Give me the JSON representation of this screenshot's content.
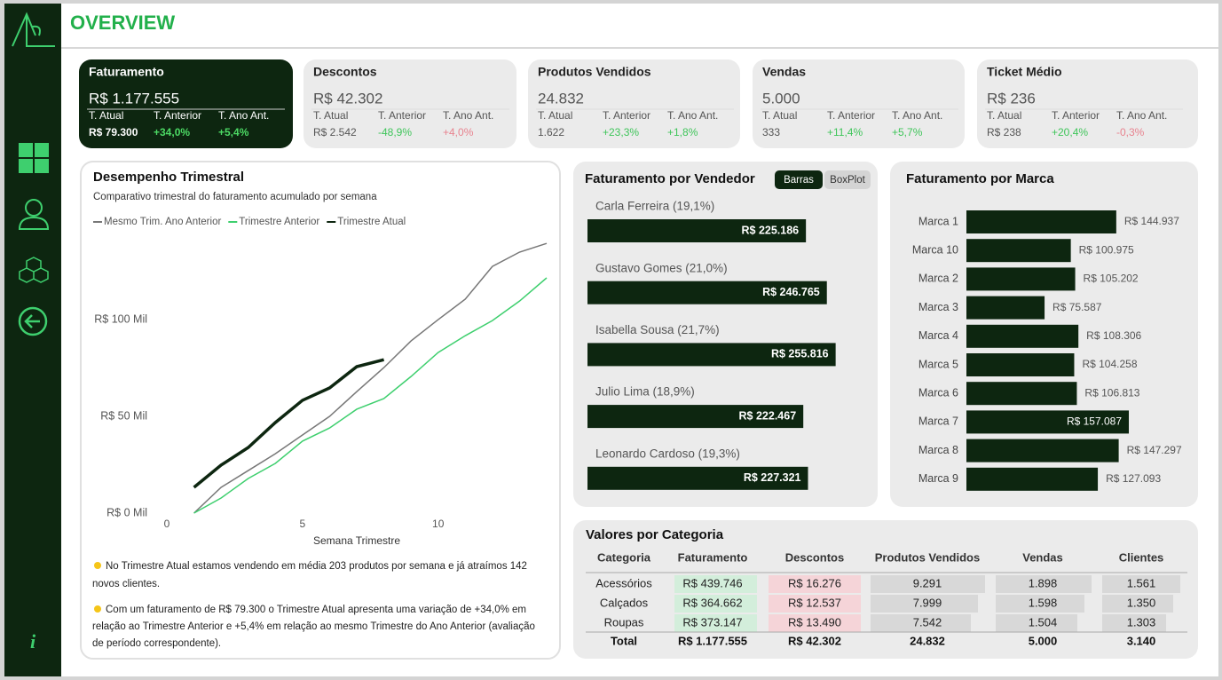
{
  "header": {
    "title": "OVERVIEW"
  },
  "kpi_labels": [
    "T. Atual",
    "T. Anterior",
    "T. Ano Ant."
  ],
  "kpis": [
    {
      "title": "Faturamento",
      "value": "R$ 1.177.555",
      "values": [
        "R$ 79.300",
        "+34,0%",
        "+5,4%"
      ],
      "colors": [
        "#ffffff",
        "#4cd964",
        "#4cd964"
      ]
    },
    {
      "title": "Descontos",
      "value": "R$ 42.302",
      "values": [
        "R$ 2.542",
        "-48,9%",
        "+4,0%"
      ],
      "colors": [
        "#555555",
        "#3fc55a",
        "#e8838f"
      ]
    },
    {
      "title": "Produtos Vendidos",
      "value": "24.832",
      "values": [
        "1.622",
        "+23,3%",
        "+1,8%"
      ],
      "colors": [
        "#555555",
        "#3fc55a",
        "#3fc55a"
      ]
    },
    {
      "title": "Vendas",
      "value": "5.000",
      "values": [
        "333",
        "+11,4%",
        "+5,7%"
      ],
      "colors": [
        "#555555",
        "#3fc55a",
        "#3fc55a"
      ]
    },
    {
      "title": "Ticket Médio",
      "value": "R$ 236",
      "values": [
        "R$ 238",
        "+20,4%",
        "-0,3%"
      ],
      "colors": [
        "#555555",
        "#3fc55a",
        "#e8838f"
      ]
    }
  ],
  "line_chart": {
    "type": "line",
    "title": "Desempenho Trimestral",
    "subtitle": "Comparativo trimestral do faturamento acumulado por semana",
    "x": [
      1,
      2,
      3,
      4,
      5,
      6,
      7,
      8,
      9,
      10,
      11,
      12,
      13,
      14
    ],
    "series": [
      {
        "name": "Mesmo Trim. Ano Anterior",
        "color": "#777777",
        "values": [
          0,
          13300,
          22000,
          30700,
          40400,
          50000,
          62800,
          75200,
          89000,
          100000,
          110600,
          127500,
          134900,
          139400
        ]
      },
      {
        "name": "Trimestre Anterior",
        "color": "#3ecf6e",
        "values": [
          0,
          7800,
          17900,
          25700,
          37200,
          44000,
          53700,
          59200,
          70600,
          83000,
          91700,
          99500,
          109600,
          121600
        ]
      },
      {
        "name": "Trimestre Atual",
        "color": "#0d2610",
        "values": [
          13300,
          24800,
          33900,
          46800,
          58300,
          64700,
          75700,
          79300,
          null,
          null,
          null,
          null,
          null,
          null
        ]
      }
    ],
    "xlim": [
      0,
      14
    ],
    "xticks": [
      0,
      5,
      10
    ],
    "xlabel": "Semana Trimestre",
    "ylim": [
      0,
      145000
    ],
    "yticks": [
      {
        "value": 0,
        "label": "R$ 0 Mil"
      },
      {
        "value": 50000,
        "label": "R$ 50 Mil"
      },
      {
        "value": 100000,
        "label": "R$ 100 Mil"
      }
    ]
  },
  "notes": [
    "No Trimestre Atual estamos vendendo em média 203 produtos por semana e já atraímos 142",
    "novos clientes.",
    "Com um faturamento de R$ 79.300 o Trimestre Atual apresenta uma variação de +34,0% em",
    "relação ao Trimestre Anterior e +5,4%  em relação ao mesmo Trimestre do Ano Anterior (avaliação",
    "de período correspondente)."
  ],
  "vendor_chart": {
    "type": "bar",
    "title": "Faturamento por Vendedor",
    "buttons": [
      "Barras",
      "BoxPlot"
    ],
    "categories": [
      "Carla Ferreira (19,1%)",
      "Gustavo Gomes (21,0%)",
      "Isabella Sousa (21,7%)",
      "Julio Lima (18,9%)",
      "Leonardo Cardoso (19,3%)"
    ],
    "values": [
      225186,
      246765,
      255816,
      222467,
      227321
    ],
    "value_labels": [
      "R$ 225.186",
      "R$ 246.765",
      "R$ 255.816",
      "R$ 222.467",
      "R$ 227.321"
    ],
    "color": "#0d2610",
    "xlim": [
      0,
      290000
    ]
  },
  "brand_chart": {
    "type": "bar",
    "title": "Faturamento por Marca",
    "categories": [
      "Marca 1",
      "Marca 10",
      "Marca 2",
      "Marca 3",
      "Marca 4",
      "Marca 5",
      "Marca 6",
      "Marca 7",
      "Marca 8",
      "Marca 9"
    ],
    "values": [
      144937,
      100975,
      105202,
      75587,
      108306,
      104258,
      106813,
      157087,
      147297,
      127093
    ],
    "value_labels": [
      "R$ 144.937",
      "R$ 100.975",
      "R$ 105.202",
      "R$ 75.587",
      "R$ 108.306",
      "R$ 104.258",
      "R$ 106.813",
      "R$ 157.087",
      "R$ 147.297",
      "R$ 127.093"
    ],
    "color": "#0d2610",
    "xlim": [
      0,
      200000
    ]
  },
  "table": {
    "title": "Valores por Categoria",
    "columns": [
      "Categoria",
      "Faturamento",
      "Descontos",
      "Produtos Vendidos",
      "Vendas",
      "Clientes"
    ],
    "rows": [
      [
        "Acessórios",
        "R$ 439.746",
        "R$ 16.276",
        "9.291",
        "1.898",
        "1.561"
      ],
      [
        "Calçados",
        "R$ 364.662",
        "R$ 12.537",
        "7.999",
        "1.598",
        "1.350"
      ],
      [
        "Roupas",
        "R$ 373.147",
        "R$ 13.490",
        "7.542",
        "1.504",
        "1.303"
      ]
    ],
    "total": [
      "Total",
      "R$ 1.177.555",
      "R$ 42.302",
      "24.832",
      "5.000",
      "3.140"
    ]
  }
}
